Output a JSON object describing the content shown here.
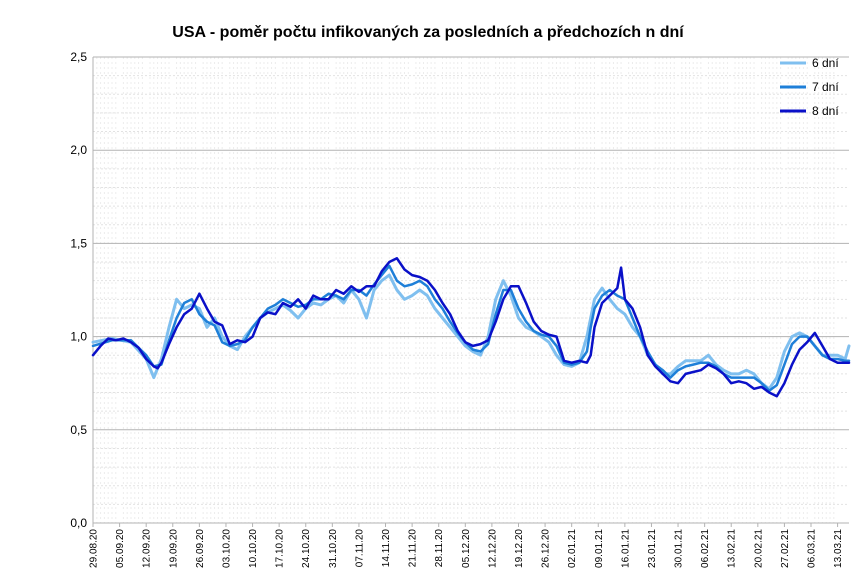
{
  "chart_data": {
    "type": "line",
    "title": "USA - poměr počtu infikovaných za posledních a předchozích n dní",
    "xlabel": "",
    "ylabel": "",
    "ylim": [
      0,
      2.5
    ],
    "yticks": [
      "0,0",
      "0,5",
      "1,0",
      "1,5",
      "2,0",
      "2,5"
    ],
    "x_start": "2020-08-29",
    "x_end": "2021-03-13",
    "x_tick_labels": [
      "29.08.20",
      "05.09.20",
      "12.09.20",
      "19.09.20",
      "26.09.20",
      "03.10.20",
      "10.10.20",
      "17.10.20",
      "24.10.20",
      "31.10.20",
      "07.11.20",
      "14.11.20",
      "21.11.20",
      "28.11.20",
      "05.12.20",
      "12.12.20",
      "19.12.20",
      "26.12.20",
      "02.01.21",
      "09.01.21",
      "16.01.21",
      "23.01.21",
      "30.01.21",
      "06.02.21",
      "13.02.21",
      "20.02.21",
      "27.02.21",
      "06.03.21",
      "13.03.21"
    ],
    "grid": true,
    "legend_position": "top-right",
    "series": [
      {
        "name": "6 dní",
        "color": "#7fbfef",
        "anchors": [
          [
            0,
            0.97
          ],
          [
            5,
            0.99
          ],
          [
            10,
            0.97
          ],
          [
            14,
            0.88
          ],
          [
            16,
            0.78
          ],
          [
            18,
            0.88
          ],
          [
            20,
            1.05
          ],
          [
            22,
            1.2
          ],
          [
            24,
            1.15
          ],
          [
            26,
            1.17
          ],
          [
            28,
            1.15
          ],
          [
            30,
            1.05
          ],
          [
            32,
            1.1
          ],
          [
            34,
            1.0
          ],
          [
            36,
            0.95
          ],
          [
            38,
            0.93
          ],
          [
            40,
            1.0
          ],
          [
            42,
            1.05
          ],
          [
            44,
            1.1
          ],
          [
            46,
            1.13
          ],
          [
            48,
            1.15
          ],
          [
            50,
            1.17
          ],
          [
            52,
            1.14
          ],
          [
            54,
            1.1
          ],
          [
            56,
            1.15
          ],
          [
            58,
            1.18
          ],
          [
            60,
            1.17
          ],
          [
            62,
            1.2
          ],
          [
            64,
            1.22
          ],
          [
            66,
            1.18
          ],
          [
            68,
            1.25
          ],
          [
            70,
            1.2
          ],
          [
            72,
            1.1
          ],
          [
            74,
            1.25
          ],
          [
            76,
            1.3
          ],
          [
            78,
            1.33
          ],
          [
            80,
            1.25
          ],
          [
            82,
            1.2
          ],
          [
            84,
            1.22
          ],
          [
            86,
            1.25
          ],
          [
            88,
            1.22
          ],
          [
            90,
            1.15
          ],
          [
            92,
            1.1
          ],
          [
            94,
            1.05
          ],
          [
            96,
            1.0
          ],
          [
            98,
            0.95
          ],
          [
            100,
            0.92
          ],
          [
            102,
            0.9
          ],
          [
            104,
            1.0
          ],
          [
            106,
            1.2
          ],
          [
            108,
            1.3
          ],
          [
            110,
            1.22
          ],
          [
            112,
            1.1
          ],
          [
            114,
            1.05
          ],
          [
            116,
            1.03
          ],
          [
            118,
            1.0
          ],
          [
            120,
            0.97
          ],
          [
            122,
            0.9
          ],
          [
            124,
            0.85
          ],
          [
            126,
            0.84
          ],
          [
            128,
            0.86
          ],
          [
            130,
            1.0
          ],
          [
            131,
            1.1
          ],
          [
            132,
            1.2
          ],
          [
            134,
            1.26
          ],
          [
            136,
            1.2
          ],
          [
            138,
            1.15
          ],
          [
            140,
            1.12
          ],
          [
            142,
            1.05
          ],
          [
            144,
            1.0
          ],
          [
            146,
            0.9
          ],
          [
            148,
            0.85
          ],
          [
            150,
            0.8
          ],
          [
            152,
            0.8
          ],
          [
            154,
            0.84
          ],
          [
            156,
            0.87
          ],
          [
            158,
            0.87
          ],
          [
            160,
            0.87
          ],
          [
            162,
            0.9
          ],
          [
            164,
            0.85
          ],
          [
            166,
            0.82
          ],
          [
            168,
            0.8
          ],
          [
            170,
            0.8
          ],
          [
            172,
            0.82
          ],
          [
            174,
            0.8
          ],
          [
            176,
            0.75
          ],
          [
            178,
            0.72
          ],
          [
            180,
            0.78
          ],
          [
            182,
            0.92
          ],
          [
            184,
            1.0
          ],
          [
            186,
            1.02
          ],
          [
            188,
            1.0
          ],
          [
            190,
            0.95
          ],
          [
            192,
            0.9
          ],
          [
            194,
            0.9
          ],
          [
            196,
            0.9
          ],
          [
            198,
            0.88
          ],
          [
            199,
            0.95
          ]
        ]
      },
      {
        "name": "7 dní",
        "color": "#1e7fd8",
        "anchors": [
          [
            0,
            0.95
          ],
          [
            5,
            0.98
          ],
          [
            10,
            0.98
          ],
          [
            14,
            0.9
          ],
          [
            16,
            0.84
          ],
          [
            18,
            0.85
          ],
          [
            20,
            0.98
          ],
          [
            22,
            1.1
          ],
          [
            24,
            1.18
          ],
          [
            26,
            1.2
          ],
          [
            28,
            1.12
          ],
          [
            30,
            1.08
          ],
          [
            32,
            1.06
          ],
          [
            34,
            0.97
          ],
          [
            36,
            0.95
          ],
          [
            38,
            0.96
          ],
          [
            40,
            0.98
          ],
          [
            42,
            1.05
          ],
          [
            44,
            1.1
          ],
          [
            46,
            1.15
          ],
          [
            48,
            1.17
          ],
          [
            50,
            1.2
          ],
          [
            52,
            1.18
          ],
          [
            54,
            1.16
          ],
          [
            56,
            1.17
          ],
          [
            58,
            1.2
          ],
          [
            60,
            1.2
          ],
          [
            62,
            1.23
          ],
          [
            64,
            1.22
          ],
          [
            66,
            1.2
          ],
          [
            68,
            1.25
          ],
          [
            70,
            1.25
          ],
          [
            72,
            1.22
          ],
          [
            74,
            1.28
          ],
          [
            76,
            1.33
          ],
          [
            78,
            1.38
          ],
          [
            80,
            1.3
          ],
          [
            82,
            1.27
          ],
          [
            84,
            1.28
          ],
          [
            86,
            1.3
          ],
          [
            88,
            1.27
          ],
          [
            90,
            1.2
          ],
          [
            92,
            1.15
          ],
          [
            94,
            1.08
          ],
          [
            96,
            1.02
          ],
          [
            98,
            0.97
          ],
          [
            100,
            0.93
          ],
          [
            102,
            0.92
          ],
          [
            104,
            0.96
          ],
          [
            106,
            1.12
          ],
          [
            108,
            1.25
          ],
          [
            110,
            1.25
          ],
          [
            112,
            1.15
          ],
          [
            114,
            1.08
          ],
          [
            116,
            1.03
          ],
          [
            118,
            1.01
          ],
          [
            120,
            1.0
          ],
          [
            122,
            0.95
          ],
          [
            124,
            0.86
          ],
          [
            126,
            0.85
          ],
          [
            128,
            0.86
          ],
          [
            130,
            0.92
          ],
          [
            131,
            1.05
          ],
          [
            132,
            1.15
          ],
          [
            134,
            1.22
          ],
          [
            136,
            1.25
          ],
          [
            138,
            1.22
          ],
          [
            140,
            1.2
          ],
          [
            142,
            1.1
          ],
          [
            144,
            1.0
          ],
          [
            146,
            0.92
          ],
          [
            148,
            0.85
          ],
          [
            150,
            0.82
          ],
          [
            152,
            0.78
          ],
          [
            154,
            0.82
          ],
          [
            156,
            0.84
          ],
          [
            158,
            0.85
          ],
          [
            160,
            0.86
          ],
          [
            162,
            0.86
          ],
          [
            164,
            0.84
          ],
          [
            166,
            0.8
          ],
          [
            168,
            0.78
          ],
          [
            170,
            0.78
          ],
          [
            172,
            0.78
          ],
          [
            174,
            0.78
          ],
          [
            176,
            0.75
          ],
          [
            178,
            0.71
          ],
          [
            180,
            0.74
          ],
          [
            182,
            0.85
          ],
          [
            184,
            0.96
          ],
          [
            186,
            1.0
          ],
          [
            188,
            1.0
          ],
          [
            190,
            0.95
          ],
          [
            192,
            0.9
          ],
          [
            194,
            0.88
          ],
          [
            196,
            0.88
          ],
          [
            198,
            0.87
          ],
          [
            199,
            0.87
          ]
        ]
      },
      {
        "name": "8 dní",
        "color": "#0a10c8",
        "anchors": [
          [
            0,
            0.9
          ],
          [
            2,
            0.95
          ],
          [
            4,
            0.99
          ],
          [
            6,
            0.98
          ],
          [
            8,
            0.99
          ],
          [
            10,
            0.97
          ],
          [
            12,
            0.94
          ],
          [
            14,
            0.88
          ],
          [
            16,
            0.84
          ],
          [
            17,
            0.83
          ],
          [
            18,
            0.86
          ],
          [
            20,
            0.96
          ],
          [
            22,
            1.05
          ],
          [
            24,
            1.12
          ],
          [
            26,
            1.15
          ],
          [
            28,
            1.23
          ],
          [
            30,
            1.15
          ],
          [
            32,
            1.08
          ],
          [
            34,
            1.06
          ],
          [
            36,
            0.96
          ],
          [
            38,
            0.98
          ],
          [
            40,
            0.97
          ],
          [
            42,
            1.0
          ],
          [
            44,
            1.1
          ],
          [
            46,
            1.13
          ],
          [
            48,
            1.12
          ],
          [
            50,
            1.18
          ],
          [
            52,
            1.16
          ],
          [
            54,
            1.2
          ],
          [
            56,
            1.15
          ],
          [
            58,
            1.22
          ],
          [
            60,
            1.2
          ],
          [
            62,
            1.2
          ],
          [
            64,
            1.25
          ],
          [
            66,
            1.23
          ],
          [
            68,
            1.27
          ],
          [
            70,
            1.24
          ],
          [
            72,
            1.27
          ],
          [
            74,
            1.27
          ],
          [
            76,
            1.35
          ],
          [
            78,
            1.4
          ],
          [
            80,
            1.42
          ],
          [
            82,
            1.36
          ],
          [
            84,
            1.33
          ],
          [
            86,
            1.32
          ],
          [
            88,
            1.3
          ],
          [
            90,
            1.25
          ],
          [
            92,
            1.18
          ],
          [
            94,
            1.12
          ],
          [
            96,
            1.03
          ],
          [
            98,
            0.97
          ],
          [
            100,
            0.95
          ],
          [
            102,
            0.96
          ],
          [
            104,
            0.98
          ],
          [
            106,
            1.08
          ],
          [
            108,
            1.2
          ],
          [
            110,
            1.27
          ],
          [
            112,
            1.27
          ],
          [
            114,
            1.18
          ],
          [
            116,
            1.08
          ],
          [
            118,
            1.03
          ],
          [
            120,
            1.01
          ],
          [
            122,
            1.0
          ],
          [
            124,
            0.87
          ],
          [
            126,
            0.86
          ],
          [
            128,
            0.87
          ],
          [
            130,
            0.86
          ],
          [
            131,
            0.9
          ],
          [
            132,
            1.05
          ],
          [
            134,
            1.18
          ],
          [
            136,
            1.22
          ],
          [
            138,
            1.26
          ],
          [
            139,
            1.37
          ],
          [
            140,
            1.2
          ],
          [
            142,
            1.15
          ],
          [
            144,
            1.05
          ],
          [
            146,
            0.9
          ],
          [
            148,
            0.84
          ],
          [
            150,
            0.8
          ],
          [
            152,
            0.76
          ],
          [
            154,
            0.75
          ],
          [
            156,
            0.8
          ],
          [
            158,
            0.81
          ],
          [
            160,
            0.82
          ],
          [
            162,
            0.85
          ],
          [
            164,
            0.83
          ],
          [
            166,
            0.8
          ],
          [
            168,
            0.75
          ],
          [
            170,
            0.76
          ],
          [
            172,
            0.75
          ],
          [
            174,
            0.72
          ],
          [
            176,
            0.73
          ],
          [
            178,
            0.7
          ],
          [
            180,
            0.68
          ],
          [
            182,
            0.75
          ],
          [
            184,
            0.85
          ],
          [
            186,
            0.93
          ],
          [
            188,
            0.97
          ],
          [
            190,
            1.02
          ],
          [
            192,
            0.95
          ],
          [
            194,
            0.88
          ],
          [
            196,
            0.86
          ],
          [
            198,
            0.86
          ],
          [
            199,
            0.86
          ]
        ]
      }
    ]
  }
}
